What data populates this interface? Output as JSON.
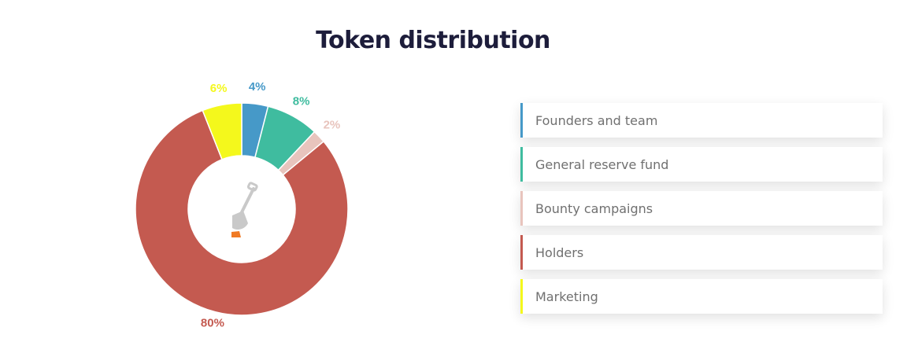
{
  "title": "Token distribution",
  "chart_data": {
    "type": "pie",
    "donut": true,
    "title": "Token distribution",
    "slices": [
      {
        "label": "Founders and team",
        "value": 4,
        "display": "4%",
        "color": "#4699c8"
      },
      {
        "label": "General reserve fund",
        "value": 8,
        "display": "8%",
        "color": "#3fbc9f"
      },
      {
        "label": "Bounty campaigns",
        "value": 2,
        "display": "2%",
        "color": "#e8c4bd"
      },
      {
        "label": "Holders",
        "value": 80,
        "display": "80%",
        "color": "#c45a50"
      },
      {
        "label": "Marketing",
        "value": 6,
        "display": "6%",
        "color": "#f4f81c"
      }
    ],
    "legend_position": "right",
    "center_icon": "shovel-icon"
  }
}
